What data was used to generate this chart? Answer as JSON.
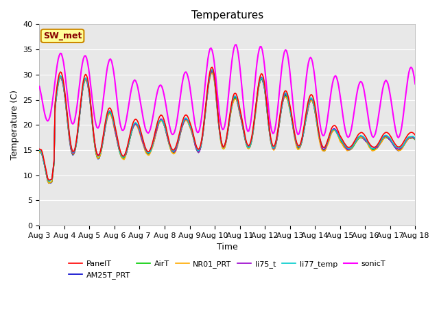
{
  "title": "Temperatures",
  "xlabel": "Time",
  "ylabel": "Temperature (C)",
  "ylim": [
    0,
    40
  ],
  "yticks": [
    0,
    5,
    10,
    15,
    20,
    25,
    30,
    35,
    40
  ],
  "xtick_labels": [
    "Aug 3",
    "Aug 4",
    "Aug 5",
    "Aug 6",
    "Aug 7",
    "Aug 8",
    "Aug 9",
    "Aug 10",
    "Aug 11",
    "Aug 12",
    "Aug 13",
    "Aug 14",
    "Aug 15",
    "Aug 16",
    "Aug 17",
    "Aug 18"
  ],
  "series": {
    "PanelT": {
      "color": "#ff0000",
      "lw": 1.2
    },
    "AM25T_PRT": {
      "color": "#0000cc",
      "lw": 1.2
    },
    "AirT": {
      "color": "#00cc00",
      "lw": 1.2
    },
    "NR01_PRT": {
      "color": "#ffaa00",
      "lw": 1.2
    },
    "li75_t": {
      "color": "#9900cc",
      "lw": 1.2
    },
    "li77_temp": {
      "color": "#00cccc",
      "lw": 1.2
    },
    "sonicT": {
      "color": "#ff00ff",
      "lw": 1.5
    }
  },
  "legend_label": "SW_met",
  "legend_facecolor": "#ffff99",
  "legend_edgecolor": "#cc8800",
  "legend_text_color": "#880000",
  "bg_color": "#e8e8e8",
  "title_fontsize": 11,
  "axis_label_fontsize": 9,
  "tick_fontsize": 8,
  "figsize": [
    6.4,
    4.8
  ],
  "dpi": 100
}
